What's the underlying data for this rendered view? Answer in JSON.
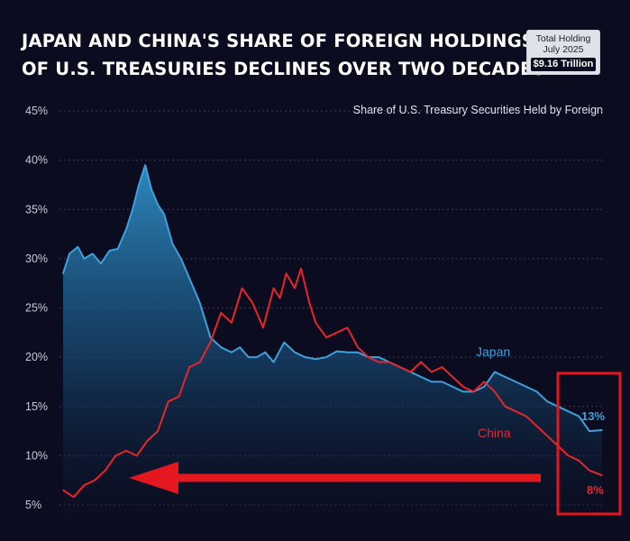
{
  "header": {
    "title_line1": "JAPAN AND CHINA'S SHARE OF FOREIGN HOLDINGS",
    "title_line2": "OF U.S. TREASURIES DECLINES OVER TWO DECADES"
  },
  "badge": {
    "line1": "Total Holding",
    "line2": "July 2025",
    "amount": "$9.16 Trillion"
  },
  "colors": {
    "japan": "#3fa0db",
    "china": "#e8262a",
    "annotation": "#e3171d",
    "grid": "#3a3d58",
    "background": "#0b0c1f"
  },
  "chart_data": {
    "type": "line",
    "title": "JAPAN AND CHINA'S SHARE OF FOREIGN HOLDINGS OF U.S. TREASURIES DECLINES OVER TWO DECADES",
    "subtitle": "Share of U.S. Treasury Securities Held by Foreign",
    "xlabel": "",
    "ylabel": "",
    "x_range": [
      2000,
      2025.6
    ],
    "ylim": [
      4,
      46
    ],
    "y_ticks": [
      5,
      10,
      15,
      20,
      25,
      30,
      35,
      40,
      45
    ],
    "y_tick_labels": [
      "5%",
      "10%",
      "15%",
      "20%",
      "25%",
      "30%",
      "35%",
      "40%",
      "45%"
    ],
    "grid": true,
    "series": [
      {
        "name": "Japan",
        "label": "Japan",
        "end_label": "13%",
        "fill": true,
        "x": [
          2000.0,
          2000.3,
          2000.7,
          2001.0,
          2001.4,
          2001.8,
          2002.2,
          2002.6,
          2003.0,
          2003.3,
          2003.6,
          2003.9,
          2004.2,
          2004.5,
          2004.8,
          2005.2,
          2005.6,
          2006.0,
          2006.5,
          2007.0,
          2007.5,
          2008.0,
          2008.4,
          2008.8,
          2009.2,
          2009.6,
          2010.0,
          2010.5,
          2011.0,
          2011.5,
          2012.0,
          2012.5,
          2013.0,
          2013.5,
          2014.0,
          2014.5,
          2015.0,
          2015.5,
          2016.0,
          2016.5,
          2017.0,
          2017.5,
          2018.0,
          2018.5,
          2019.0,
          2019.5,
          2020.0,
          2020.5,
          2021.0,
          2021.5,
          2022.0,
          2022.5,
          2023.0,
          2023.5,
          2024.0,
          2024.5,
          2025.0,
          2025.6
        ],
        "values": [
          28.5,
          30.5,
          31.2,
          30.0,
          30.5,
          29.5,
          30.8,
          31.0,
          33.0,
          35.0,
          37.5,
          39.5,
          37.0,
          35.5,
          34.5,
          31.5,
          30.0,
          28.0,
          25.5,
          22.0,
          21.0,
          20.5,
          21.0,
          20.0,
          20.0,
          20.5,
          19.5,
          21.5,
          20.5,
          20.0,
          19.8,
          20.0,
          20.6,
          20.5,
          20.5,
          20.0,
          20.0,
          19.5,
          19.0,
          18.5,
          18.0,
          17.5,
          17.5,
          17.0,
          16.5,
          16.5,
          17.0,
          18.5,
          18.0,
          17.5,
          17.0,
          16.5,
          15.5,
          15.0,
          14.5,
          14.0,
          12.5,
          12.6
        ]
      },
      {
        "name": "China",
        "label": "China",
        "end_label": "8%",
        "fill": false,
        "x": [
          2000.0,
          2000.5,
          2001.0,
          2001.5,
          2002.0,
          2002.5,
          2003.0,
          2003.5,
          2004.0,
          2004.5,
          2005.0,
          2005.5,
          2006.0,
          2006.5,
          2007.0,
          2007.5,
          2008.0,
          2008.5,
          2009.0,
          2009.5,
          2010.0,
          2010.3,
          2010.6,
          2011.0,
          2011.3,
          2011.7,
          2012.0,
          2012.5,
          2013.0,
          2013.5,
          2014.0,
          2014.5,
          2015.0,
          2015.5,
          2016.0,
          2016.5,
          2017.0,
          2017.5,
          2018.0,
          2018.5,
          2019.0,
          2019.5,
          2020.0,
          2020.5,
          2021.0,
          2021.5,
          2022.0,
          2022.5,
          2023.0,
          2023.5,
          2024.0,
          2024.5,
          2025.0,
          2025.6
        ],
        "values": [
          6.5,
          5.8,
          7.0,
          7.5,
          8.5,
          10.0,
          10.5,
          10.0,
          11.5,
          12.5,
          15.5,
          16.0,
          19.0,
          19.5,
          21.5,
          24.5,
          23.5,
          27.0,
          25.5,
          23.0,
          27.0,
          26.0,
          28.5,
          27.0,
          29.0,
          25.5,
          23.5,
          22.0,
          22.5,
          23.0,
          21.0,
          20.0,
          19.5,
          19.5,
          19.0,
          18.5,
          19.5,
          18.5,
          19.0,
          18.0,
          17.0,
          16.5,
          17.5,
          16.5,
          15.0,
          14.5,
          14.0,
          13.0,
          12.0,
          11.0,
          10.0,
          9.5,
          8.5,
          8.0
        ]
      }
    ]
  }
}
